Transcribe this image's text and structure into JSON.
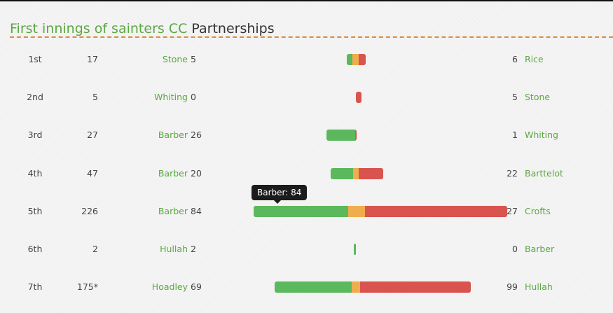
{
  "title": {
    "prefix": "First innings of sainters CC",
    "suffix": "Partnerships"
  },
  "colors": {
    "batter1": "#5cb85c",
    "extras": "#f0ad4e",
    "batter2": "#d9534f",
    "accent": "#e08a3a",
    "name": "#5ba842"
  },
  "tooltip": {
    "text": "Barber: 84"
  },
  "partnerships": [
    {
      "wicket": "1st",
      "runs": "17",
      "batter1": "Stone",
      "batter1_score": "5",
      "batter2_score": "6",
      "batter2": "Rice",
      "extras": 6
    },
    {
      "wicket": "2nd",
      "runs": "5",
      "batter1": "Whiting",
      "batter1_score": "0",
      "batter2_score": "5",
      "batter2": "Stone",
      "extras": 0
    },
    {
      "wicket": "3rd",
      "runs": "27",
      "batter1": "Barber",
      "batter1_score": "26",
      "batter2_score": "1",
      "batter2": "Whiting",
      "extras": 0
    },
    {
      "wicket": "4th",
      "runs": "47",
      "batter1": "Barber",
      "batter1_score": "20",
      "batter2_score": "22",
      "batter2": "Barttelot",
      "extras": 5
    },
    {
      "wicket": "5th",
      "runs": "226",
      "batter1": "Barber",
      "batter1_score": "84",
      "batter2_score": "127",
      "batter2": "Crofts",
      "extras": 15
    },
    {
      "wicket": "6th",
      "runs": "2",
      "batter1": "Hullah",
      "batter1_score": "2",
      "batter2_score": "0",
      "batter2": "Barber",
      "extras": 0
    },
    {
      "wicket": "7th",
      "runs": "175*",
      "batter1": "Hoadley",
      "batter1_score": "69",
      "batter2_score": "99",
      "batter2": "Hullah",
      "extras": 7
    }
  ]
}
